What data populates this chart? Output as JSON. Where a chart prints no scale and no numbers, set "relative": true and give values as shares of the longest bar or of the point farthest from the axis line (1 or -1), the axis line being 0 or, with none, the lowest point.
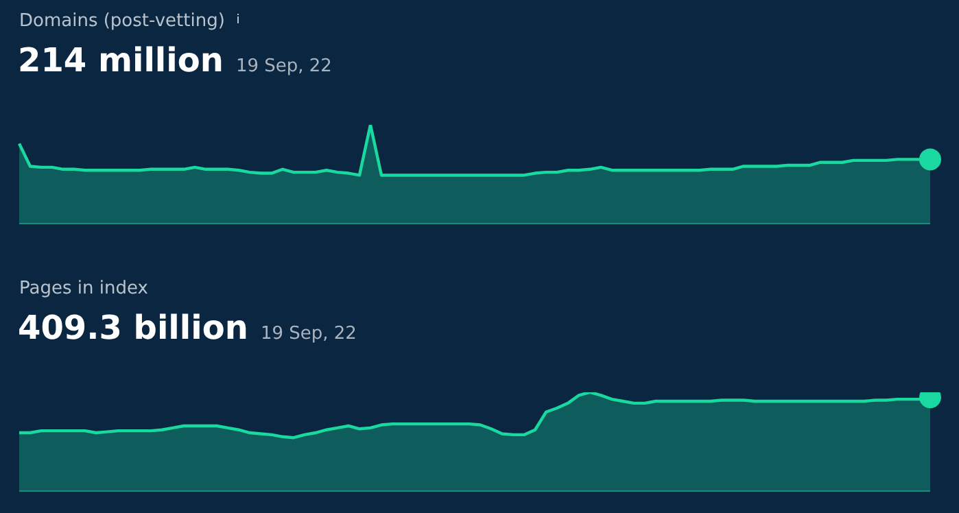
{
  "chart_data": [
    {
      "type": "area",
      "title": "Domains (post-vetting)",
      "annotations": [
        "214 million",
        "19 Sep, 22"
      ],
      "relative": true,
      "categories": [
        null,
        null,
        null,
        null,
        null,
        null,
        null,
        null,
        null,
        null,
        null,
        null,
        null,
        null,
        null,
        null,
        null,
        null,
        null,
        null,
        null,
        null,
        null,
        null,
        null,
        null,
        null,
        null,
        null,
        null,
        null,
        null,
        null,
        null,
        null,
        null,
        null,
        null,
        null,
        null,
        null,
        null,
        null,
        null,
        null,
        null,
        null,
        null,
        null,
        null,
        null,
        null,
        null,
        null,
        null,
        null,
        null,
        null,
        null,
        null,
        null,
        null,
        null,
        null,
        null,
        null,
        null,
        null,
        null,
        null,
        null,
        null,
        null,
        null,
        null,
        null,
        null,
        null,
        null,
        null,
        null,
        null,
        null,
        null
      ],
      "series": [
        {
          "color": "#1ad9a0",
          "values": [
            0.81,
            0.58,
            0.57,
            0.57,
            0.55,
            0.55,
            0.54,
            0.54,
            0.54,
            0.54,
            0.54,
            0.54,
            0.55,
            0.55,
            0.55,
            0.55,
            0.57,
            0.55,
            0.55,
            0.55,
            0.54,
            0.52,
            0.51,
            0.51,
            0.55,
            0.52,
            0.52,
            0.52,
            0.54,
            0.52,
            0.51,
            0.49,
            1,
            0.49,
            0.49,
            0.49,
            0.49,
            0.49,
            0.49,
            0.49,
            0.49,
            0.49,
            0.49,
            0.49,
            0.49,
            0.49,
            0.49,
            0.51,
            0.52,
            0.52,
            0.54,
            0.54,
            0.55,
            0.57,
            0.54,
            0.54,
            0.54,
            0.54,
            0.54,
            0.54,
            0.54,
            0.54,
            0.54,
            0.55,
            0.55,
            0.55,
            0.58,
            0.58,
            0.58,
            0.58,
            0.59,
            0.59,
            0.59,
            0.62,
            0.62,
            0.62,
            0.64,
            0.64,
            0.64,
            0.64,
            0.65,
            0.65,
            0.65,
            0.65
          ]
        }
      ]
    },
    {
      "type": "area",
      "title": "Pages in index",
      "annotations": [
        "409.3 billion",
        "19 Sep, 22"
      ],
      "relative": true,
      "categories": [
        null,
        null,
        null,
        null,
        null,
        null,
        null,
        null,
        null,
        null,
        null,
        null,
        null,
        null,
        null,
        null,
        null,
        null,
        null,
        null,
        null,
        null,
        null,
        null,
        null,
        null,
        null,
        null,
        null,
        null,
        null,
        null,
        null,
        null,
        null,
        null,
        null,
        null,
        null,
        null,
        null,
        null,
        null,
        null,
        null,
        null,
        null,
        null,
        null,
        null,
        null,
        null,
        null,
        null,
        null,
        null,
        null,
        null,
        null,
        null,
        null,
        null,
        null,
        null,
        null,
        null,
        null,
        null,
        null,
        null,
        null,
        null,
        null,
        null,
        null,
        null,
        null,
        null,
        null,
        null,
        null,
        null,
        null,
        null
      ],
      "series": [
        {
          "color": "#1ad9a0",
          "values": [
            0.59,
            0.59,
            0.61,
            0.61,
            0.61,
            0.61,
            0.61,
            0.59,
            0.6,
            0.61,
            0.61,
            0.61,
            0.61,
            0.62,
            0.64,
            0.66,
            0.66,
            0.66,
            0.66,
            0.64,
            0.62,
            0.59,
            0.58,
            0.57,
            0.55,
            0.54,
            0.57,
            0.59,
            0.62,
            0.64,
            0.66,
            0.63,
            0.64,
            0.67,
            0.68,
            0.68,
            0.68,
            0.68,
            0.68,
            0.68,
            0.68,
            0.68,
            0.67,
            0.63,
            0.58,
            0.57,
            0.57,
            0.62,
            0.8,
            0.84,
            0.89,
            0.97,
            1,
            0.97,
            0.93,
            0.91,
            0.89,
            0.89,
            0.91,
            0.91,
            0.91,
            0.91,
            0.91,
            0.91,
            0.92,
            0.92,
            0.92,
            0.91,
            0.91,
            0.91,
            0.91,
            0.91,
            0.91,
            0.91,
            0.91,
            0.91,
            0.91,
            0.91,
            0.92,
            0.92,
            0.93,
            0.93,
            0.93,
            0.95
          ]
        }
      ]
    }
  ]
}
